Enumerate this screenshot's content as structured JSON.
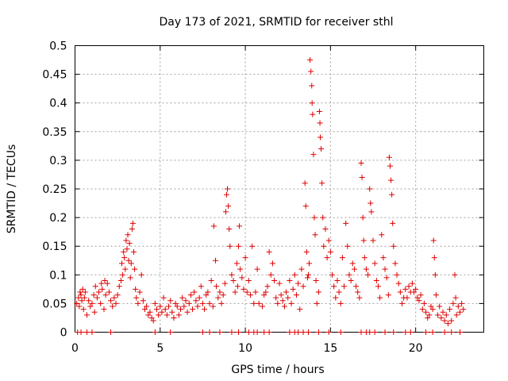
{
  "chart_data": {
    "type": "scatter",
    "title": "Day 173 of 2021, SRMTID for receiver sthl",
    "xlabel": "GPS time / hours",
    "ylabel": "SRMTID / TECUs",
    "xlim": [
      0,
      24
    ],
    "ylim": [
      0,
      0.5
    ],
    "x_ticks": [
      0,
      5,
      10,
      15,
      20
    ],
    "x_tick_labels": [
      "0",
      "5",
      "10",
      "15",
      "20"
    ],
    "y_ticks": [
      0,
      0.05,
      0.1,
      0.15,
      0.2,
      0.25,
      0.3,
      0.35,
      0.4,
      0.45,
      0.5
    ],
    "y_tick_labels": [
      "0",
      "0.05",
      "0.1",
      "0.15",
      "0.2",
      "0.25",
      "0.3",
      "0.35",
      "0.4",
      "0.45",
      "0.5"
    ],
    "grid": true,
    "marker": "+",
    "marker_color": "#e00000",
    "series": [
      {
        "name": "SRMTID",
        "points": [
          [
            0.1,
            0.05
          ],
          [
            0.2,
            0.06
          ],
          [
            0.25,
            0.045
          ],
          [
            0.3,
            0.07
          ],
          [
            0.35,
            0.065
          ],
          [
            0.4,
            0.055
          ],
          [
            0.45,
            0.075
          ],
          [
            0.5,
            0.04
          ],
          [
            0.55,
            0.06
          ],
          [
            0.6,
            0.07
          ],
          [
            0.7,
            0.03
          ],
          [
            0.8,
            0.055
          ],
          [
            0.9,
            0.045
          ],
          [
            1.0,
            0.05
          ],
          [
            1.1,
            0.065
          ],
          [
            1.15,
            0.035
          ],
          [
            1.2,
            0.08
          ],
          [
            1.3,
            0.06
          ],
          [
            1.4,
            0.07
          ],
          [
            1.5,
            0.05
          ],
          [
            1.55,
            0.085
          ],
          [
            1.6,
            0.075
          ],
          [
            1.7,
            0.04
          ],
          [
            1.75,
            0.09
          ],
          [
            1.8,
            0.065
          ],
          [
            1.9,
            0.085
          ],
          [
            2.0,
            0.07
          ],
          [
            2.1,
            0.055
          ],
          [
            2.2,
            0.045
          ],
          [
            2.3,
            0.06
          ],
          [
            2.4,
            0.05
          ],
          [
            2.5,
            0.065
          ],
          [
            2.6,
            0.08
          ],
          [
            2.7,
            0.09
          ],
          [
            2.75,
            0.12
          ],
          [
            2.8,
            0.1
          ],
          [
            2.85,
            0.14
          ],
          [
            2.9,
            0.13
          ],
          [
            2.95,
            0.11
          ],
          [
            3.0,
            0.16
          ],
          [
            3.05,
            0.145
          ],
          [
            3.1,
            0.17
          ],
          [
            3.15,
            0.125
          ],
          [
            3.2,
            0.155
          ],
          [
            3.25,
            0.095
          ],
          [
            3.3,
            0.12
          ],
          [
            3.35,
            0.18
          ],
          [
            3.4,
            0.19
          ],
          [
            3.45,
            0.14
          ],
          [
            3.5,
            0.11
          ],
          [
            3.55,
            0.075
          ],
          [
            3.6,
            0.06
          ],
          [
            3.7,
            0.05
          ],
          [
            3.8,
            0.07
          ],
          [
            3.9,
            0.1
          ],
          [
            4.0,
            0.055
          ],
          [
            4.1,
            0.04
          ],
          [
            4.2,
            0.045
          ],
          [
            4.3,
            0.03
          ],
          [
            4.4,
            0.035
          ],
          [
            4.5,
            0.025
          ],
          [
            4.6,
            0.02
          ],
          [
            4.7,
            0.05
          ],
          [
            4.8,
            0.04
          ],
          [
            4.9,
            0.03
          ],
          [
            5.0,
            0.045
          ],
          [
            5.1,
            0.035
          ],
          [
            5.2,
            0.06
          ],
          [
            5.3,
            0.04
          ],
          [
            5.4,
            0.03
          ],
          [
            5.5,
            0.045
          ],
          [
            5.6,
            0.055
          ],
          [
            5.7,
            0.035
          ],
          [
            5.8,
            0.025
          ],
          [
            5.9,
            0.05
          ],
          [
            6.0,
            0.045
          ],
          [
            6.1,
            0.03
          ],
          [
            6.2,
            0.04
          ],
          [
            6.3,
            0.06
          ],
          [
            6.4,
            0.045
          ],
          [
            6.5,
            0.055
          ],
          [
            6.6,
            0.035
          ],
          [
            6.7,
            0.05
          ],
          [
            6.8,
            0.065
          ],
          [
            6.9,
            0.04
          ],
          [
            7.0,
            0.07
          ],
          [
            7.1,
            0.055
          ],
          [
            7.2,
            0.045
          ],
          [
            7.3,
            0.06
          ],
          [
            7.4,
            0.08
          ],
          [
            7.5,
            0.05
          ],
          [
            7.6,
            0.04
          ],
          [
            7.7,
            0.065
          ],
          [
            7.8,
            0.07
          ],
          [
            7.9,
            0.05
          ],
          [
            8.0,
            0.09
          ],
          [
            8.1,
            0.045
          ],
          [
            8.15,
            0.185
          ],
          [
            8.25,
            0.125
          ],
          [
            8.3,
            0.08
          ],
          [
            8.4,
            0.06
          ],
          [
            8.5,
            0.07
          ],
          [
            8.6,
            0.05
          ],
          [
            8.7,
            0.065
          ],
          [
            8.8,
            0.085
          ],
          [
            8.85,
            0.21
          ],
          [
            8.9,
            0.24
          ],
          [
            8.95,
            0.25
          ],
          [
            9.0,
            0.22
          ],
          [
            9.05,
            0.18
          ],
          [
            9.1,
            0.15
          ],
          [
            9.2,
            0.1
          ],
          [
            9.3,
            0.09
          ],
          [
            9.4,
            0.07
          ],
          [
            9.5,
            0.12
          ],
          [
            9.55,
            0.08
          ],
          [
            9.6,
            0.15
          ],
          [
            9.65,
            0.185
          ],
          [
            9.7,
            0.11
          ],
          [
            9.8,
            0.095
          ],
          [
            9.9,
            0.075
          ],
          [
            10.0,
            0.13
          ],
          [
            10.1,
            0.07
          ],
          [
            10.2,
            0.09
          ],
          [
            10.3,
            0.065
          ],
          [
            10.4,
            0.15
          ],
          [
            10.5,
            0.05
          ],
          [
            10.6,
            0.07
          ],
          [
            10.7,
            0.11
          ],
          [
            10.8,
            0.05
          ],
          [
            11.0,
            0.045
          ],
          [
            11.1,
            0.065
          ],
          [
            11.2,
            0.07
          ],
          [
            11.3,
            0.08
          ],
          [
            11.4,
            0.14
          ],
          [
            11.5,
            0.1
          ],
          [
            11.6,
            0.12
          ],
          [
            11.7,
            0.09
          ],
          [
            11.8,
            0.06
          ],
          [
            11.9,
            0.05
          ],
          [
            12.0,
            0.085
          ],
          [
            12.1,
            0.065
          ],
          [
            12.2,
            0.055
          ],
          [
            12.3,
            0.045
          ],
          [
            12.4,
            0.07
          ],
          [
            12.5,
            0.06
          ],
          [
            12.6,
            0.09
          ],
          [
            12.7,
            0.05
          ],
          [
            12.8,
            0.075
          ],
          [
            12.9,
            0.1
          ],
          [
            13.0,
            0.065
          ],
          [
            13.1,
            0.085
          ],
          [
            13.2,
            0.04
          ],
          [
            13.3,
            0.11
          ],
          [
            13.4,
            0.08
          ],
          [
            13.5,
            0.26
          ],
          [
            13.55,
            0.22
          ],
          [
            13.6,
            0.14
          ],
          [
            13.65,
            0.095
          ],
          [
            13.7,
            0.1
          ],
          [
            13.75,
            0.12
          ],
          [
            13.8,
            0.475
          ],
          [
            13.85,
            0.455
          ],
          [
            13.9,
            0.43
          ],
          [
            13.92,
            0.4
          ],
          [
            13.95,
            0.38
          ],
          [
            14.0,
            0.31
          ],
          [
            14.05,
            0.2
          ],
          [
            14.1,
            0.17
          ],
          [
            14.15,
            0.09
          ],
          [
            14.2,
            0.05
          ],
          [
            14.3,
            0.07
          ],
          [
            14.35,
            0.385
          ],
          [
            14.38,
            0.365
          ],
          [
            14.4,
            0.34
          ],
          [
            14.45,
            0.32
          ],
          [
            14.5,
            0.26
          ],
          [
            14.55,
            0.2
          ],
          [
            14.6,
            0.15
          ],
          [
            14.7,
            0.18
          ],
          [
            14.8,
            0.13
          ],
          [
            14.9,
            0.16
          ],
          [
            15.0,
            0.14
          ],
          [
            15.1,
            0.1
          ],
          [
            15.2,
            0.08
          ],
          [
            15.3,
            0.06
          ],
          [
            15.4,
            0.09
          ],
          [
            15.5,
            0.07
          ],
          [
            15.6,
            0.05
          ],
          [
            15.7,
            0.13
          ],
          [
            15.8,
            0.08
          ],
          [
            15.9,
            0.19
          ],
          [
            16.0,
            0.15
          ],
          [
            16.1,
            0.1
          ],
          [
            16.2,
            0.09
          ],
          [
            16.3,
            0.12
          ],
          [
            16.4,
            0.11
          ],
          [
            16.5,
            0.08
          ],
          [
            16.6,
            0.07
          ],
          [
            16.7,
            0.06
          ],
          [
            16.8,
            0.295
          ],
          [
            16.85,
            0.27
          ],
          [
            16.9,
            0.2
          ],
          [
            16.95,
            0.16
          ],
          [
            17.0,
            0.13
          ],
          [
            17.1,
            0.11
          ],
          [
            17.2,
            0.1
          ],
          [
            17.3,
            0.25
          ],
          [
            17.35,
            0.225
          ],
          [
            17.4,
            0.21
          ],
          [
            17.5,
            0.16
          ],
          [
            17.6,
            0.12
          ],
          [
            17.7,
            0.09
          ],
          [
            17.8,
            0.08
          ],
          [
            17.9,
            0.06
          ],
          [
            18.0,
            0.17
          ],
          [
            18.1,
            0.13
          ],
          [
            18.2,
            0.11
          ],
          [
            18.3,
            0.095
          ],
          [
            18.4,
            0.065
          ],
          [
            18.45,
            0.305
          ],
          [
            18.5,
            0.29
          ],
          [
            18.55,
            0.265
          ],
          [
            18.6,
            0.24
          ],
          [
            18.65,
            0.19
          ],
          [
            18.7,
            0.15
          ],
          [
            18.8,
            0.12
          ],
          [
            18.9,
            0.1
          ],
          [
            19.0,
            0.085
          ],
          [
            19.1,
            0.07
          ],
          [
            19.2,
            0.05
          ],
          [
            19.3,
            0.06
          ],
          [
            19.4,
            0.075
          ],
          [
            19.5,
            0.06
          ],
          [
            19.6,
            0.08
          ],
          [
            19.7,
            0.07
          ],
          [
            19.8,
            0.085
          ],
          [
            19.9,
            0.07
          ],
          [
            20.0,
            0.075
          ],
          [
            20.1,
            0.06
          ],
          [
            20.2,
            0.055
          ],
          [
            20.3,
            0.065
          ],
          [
            20.4,
            0.04
          ],
          [
            20.5,
            0.05
          ],
          [
            20.6,
            0.035
          ],
          [
            20.7,
            0.025
          ],
          [
            20.8,
            0.03
          ],
          [
            20.9,
            0.045
          ],
          [
            21.0,
            0.04
          ],
          [
            21.05,
            0.16
          ],
          [
            21.1,
            0.13
          ],
          [
            21.15,
            0.1
          ],
          [
            21.2,
            0.065
          ],
          [
            21.3,
            0.03
          ],
          [
            21.4,
            0.045
          ],
          [
            21.5,
            0.025
          ],
          [
            21.6,
            0.035
          ],
          [
            21.7,
            0.02
          ],
          [
            21.8,
            0.03
          ],
          [
            21.9,
            0.015
          ],
          [
            22.0,
            0.04
          ],
          [
            22.1,
            0.02
          ],
          [
            22.2,
            0.05
          ],
          [
            22.3,
            0.1
          ],
          [
            22.35,
            0.06
          ],
          [
            22.4,
            0.03
          ],
          [
            22.5,
            0.045
          ],
          [
            22.6,
            0.035
          ],
          [
            22.7,
            0.05
          ],
          [
            22.8,
            0.04
          ],
          [
            0.15,
            0.0
          ],
          [
            0.35,
            0.0
          ],
          [
            0.7,
            0.0
          ],
          [
            1.0,
            0.0
          ],
          [
            2.1,
            0.0
          ],
          [
            4.7,
            0.0
          ],
          [
            5.6,
            0.0
          ],
          [
            7.5,
            0.0
          ],
          [
            7.9,
            0.0
          ],
          [
            8.5,
            0.0
          ],
          [
            9.2,
            0.0
          ],
          [
            9.6,
            0.0
          ],
          [
            10.2,
            0.0
          ],
          [
            10.5,
            0.0
          ],
          [
            10.7,
            0.0
          ],
          [
            11.1,
            0.0
          ],
          [
            11.4,
            0.0
          ],
          [
            12.6,
            0.0
          ],
          [
            12.9,
            0.0
          ],
          [
            13.1,
            0.0
          ],
          [
            13.4,
            0.0
          ],
          [
            13.7,
            0.0
          ],
          [
            14.3,
            0.0
          ],
          [
            14.9,
            0.0
          ],
          [
            15.6,
            0.0
          ],
          [
            16.8,
            0.0
          ],
          [
            17.1,
            0.0
          ],
          [
            17.3,
            0.0
          ],
          [
            17.6,
            0.0
          ],
          [
            18.2,
            0.0
          ],
          [
            18.7,
            0.0
          ],
          [
            19.4,
            0.0
          ],
          [
            19.7,
            0.0
          ],
          [
            20.6,
            0.0
          ],
          [
            21.0,
            0.0
          ],
          [
            21.7,
            0.0
          ],
          [
            22.1,
            0.0
          ],
          [
            22.6,
            0.0
          ]
        ]
      }
    ]
  }
}
